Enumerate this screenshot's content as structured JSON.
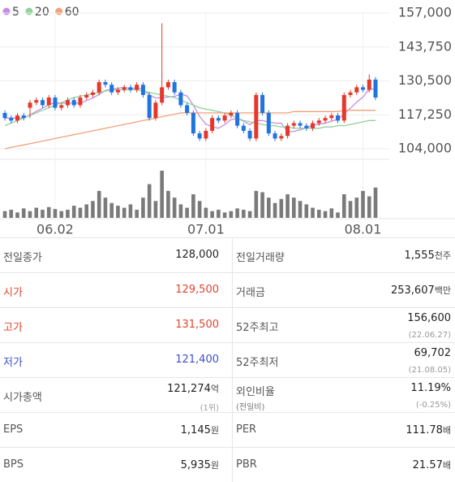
{
  "chart_data": {
    "type": "candlestick",
    "legend": [
      {
        "name": "5",
        "color": "#c78be6"
      },
      {
        "name": "20",
        "color": "#8fd39a"
      },
      {
        "name": "60",
        "color": "#f4a07a"
      }
    ],
    "up_color": "#e5382b",
    "down_color": "#1f74e0",
    "ylim": [
      104000,
      157000
    ],
    "yticks": [
      {
        "value": 157000,
        "label": "157,000"
      },
      {
        "value": 143750,
        "label": "143,750"
      },
      {
        "value": 130500,
        "label": "130,500"
      },
      {
        "value": 117250,
        "label": "117,250"
      },
      {
        "value": 104000,
        "label": "104,000"
      }
    ],
    "grid": true,
    "categories": [
      null,
      null,
      null,
      null,
      null,
      null,
      null,
      null,
      "06.02",
      null,
      null,
      null,
      null,
      null,
      null,
      null,
      null,
      null,
      null,
      null,
      null,
      null,
      null,
      null,
      null,
      null,
      null,
      null,
      null,
      null,
      null,
      null,
      "07.01",
      null,
      null,
      null,
      null,
      null,
      null,
      null,
      null,
      null,
      null,
      null,
      null,
      null,
      null,
      null,
      null,
      null,
      null,
      null,
      null,
      null,
      null,
      null,
      null,
      "08.01",
      null,
      null
    ],
    "open": [
      118000,
      116000,
      115000,
      117000,
      120000,
      122000,
      123000,
      121000,
      124000,
      120000,
      121000,
      123000,
      121000,
      124000,
      125000,
      126000,
      130000,
      129000,
      126000,
      127000,
      128000,
      127000,
      129000,
      125000,
      116000,
      122000,
      128000,
      130000,
      126000,
      121000,
      118000,
      110000,
      108000,
      111000,
      116000,
      115000,
      117000,
      118000,
      113000,
      111000,
      108000,
      125000,
      118000,
      110000,
      108000,
      109000,
      113000,
      114000,
      113000,
      112000,
      114000,
      115000,
      116000,
      117000,
      115000,
      125000,
      126000,
      128000,
      127000,
      131000
    ],
    "high": [
      119000,
      117000,
      118000,
      118000,
      123000,
      124000,
      124000,
      125000,
      125000,
      122000,
      124000,
      124000,
      125000,
      126000,
      127000,
      131000,
      131000,
      130000,
      128000,
      129000,
      129000,
      130000,
      130000,
      126000,
      123000,
      153000,
      131000,
      131000,
      127000,
      122000,
      119000,
      111000,
      112000,
      117000,
      117000,
      118000,
      119000,
      119000,
      114000,
      112000,
      126000,
      126000,
      119000,
      111000,
      110000,
      114000,
      115000,
      115000,
      114000,
      115000,
      116000,
      117000,
      118000,
      118000,
      126000,
      127000,
      129000,
      129000,
      133000,
      132000
    ],
    "low": [
      115000,
      114000,
      114000,
      115000,
      116000,
      121000,
      120000,
      120000,
      119000,
      119000,
      120000,
      120000,
      120000,
      123000,
      124000,
      125000,
      128000,
      125000,
      125000,
      126000,
      126000,
      126000,
      124000,
      115000,
      115000,
      121000,
      127000,
      125000,
      120000,
      117000,
      109000,
      107000,
      107000,
      110000,
      114000,
      114000,
      116000,
      112000,
      110000,
      107000,
      107000,
      117000,
      109000,
      107000,
      107000,
      108000,
      112000,
      112000,
      111000,
      111000,
      113000,
      114000,
      115000,
      114000,
      114000,
      124000,
      125000,
      126000,
      126000,
      123000
    ],
    "close": [
      116000,
      115000,
      117000,
      116000,
      122000,
      123000,
      121000,
      124000,
      120000,
      121000,
      123000,
      121000,
      124000,
      125000,
      126000,
      130000,
      129000,
      126000,
      127000,
      128000,
      127000,
      129000,
      125000,
      116000,
      122000,
      128000,
      130000,
      126000,
      121000,
      118000,
      110000,
      108000,
      111000,
      116000,
      115000,
      117000,
      118000,
      113000,
      111000,
      108000,
      125000,
      118000,
      110000,
      108000,
      109000,
      113000,
      114000,
      113000,
      112000,
      114000,
      115000,
      116000,
      117000,
      115000,
      125000,
      126000,
      128000,
      127000,
      131000,
      124000
    ],
    "volume": [
      10,
      12,
      8,
      14,
      10,
      15,
      12,
      16,
      13,
      10,
      12,
      18,
      15,
      20,
      25,
      40,
      30,
      22,
      18,
      15,
      20,
      12,
      30,
      50,
      25,
      70,
      40,
      30,
      20,
      15,
      35,
      25,
      15,
      10,
      12,
      8,
      10,
      14,
      12,
      10,
      40,
      38,
      30,
      22,
      28,
      35,
      30,
      25,
      20,
      15,
      12,
      10,
      14,
      8,
      35,
      25,
      30,
      40,
      32,
      45
    ],
    "volume_color": "#7a7a7a",
    "ma": [
      {
        "values": [
          116000,
          116000,
          116000,
          116000,
          117200,
          118600,
          119800,
          121200,
          122000,
          121800,
          121800,
          121800,
          121800,
          122800,
          123800,
          125200,
          126800,
          127200,
          127600,
          128000,
          127400,
          127800,
          127200,
          125000,
          123800,
          124000,
          124200,
          124400,
          125400,
          124600,
          121000,
          116600,
          113600,
          112600,
          112000,
          113400,
          115400,
          115800,
          114800,
          113400,
          115000,
          115000,
          114400,
          114000,
          114000,
          110600,
          110800,
          111400,
          112200,
          113200,
          113600,
          114000,
          114800,
          115400,
          117600,
          119800,
          122200,
          124200,
          127400,
          127200
        ]
      },
      {
        "values": [
          113000,
          114000,
          115000,
          116000,
          117000,
          118000,
          119000,
          120000,
          121000,
          122000,
          123000,
          124000,
          124500,
          125000,
          125500,
          126000,
          126500,
          127000,
          127000,
          127000,
          127000,
          127000,
          126500,
          126000,
          125500,
          125000,
          124500,
          124000,
          123000,
          122000,
          121000,
          120000,
          119500,
          119000,
          118500,
          118000,
          117000,
          116000,
          115000,
          114500,
          114000,
          113500,
          113000,
          113000,
          112500,
          112500,
          112000,
          112000,
          112000,
          112000,
          112000,
          112500,
          112500,
          113000,
          113000,
          113500,
          114000,
          114500,
          115000,
          115000
        ]
      },
      {
        "values": [
          104000,
          104500,
          105000,
          105500,
          106000,
          106500,
          107000,
          107500,
          108000,
          108500,
          109000,
          109500,
          110000,
          110500,
          111000,
          111500,
          112000,
          112500,
          113000,
          113500,
          114000,
          114500,
          115000,
          115500,
          116000,
          116500,
          117000,
          117500,
          118000,
          118000,
          118000,
          118000,
          118000,
          118000,
          118000,
          118000,
          118000,
          118000,
          118000,
          118000,
          118000,
          118000,
          118000,
          118000,
          118000,
          118000,
          118500,
          118500,
          118500,
          118500,
          118500,
          118500,
          118500,
          118500,
          119000,
          119000,
          119000,
          119000,
          119000,
          119000
        ]
      }
    ]
  },
  "table": {
    "rows": [
      [
        {
          "label": "전일종가",
          "value": "128,000"
        },
        {
          "label": "전일거래량",
          "value": "1,555",
          "unit": "천주"
        }
      ],
      [
        {
          "label": "시가",
          "value": "129,500",
          "color": "#e0452f"
        },
        {
          "label": "거래금",
          "value": "253,607",
          "unit": "백만"
        }
      ],
      [
        {
          "label": "고가",
          "value": "131,500",
          "color": "#e0452f"
        },
        {
          "label": "52주최고",
          "value": "156,600",
          "sub": "(22.06.27)"
        }
      ],
      [
        {
          "label": "저가",
          "value": "121,400",
          "color": "#3d4fc8"
        },
        {
          "label": "52주최저",
          "value": "69,702",
          "sub": "(21.08.05)"
        }
      ],
      [
        {
          "label": "시가총액",
          "value": "121,274",
          "unit": "억",
          "sub": "(1위)"
        },
        {
          "label": "외인비율",
          "label_sub": "(전일비)",
          "value": "11.19%",
          "sub": "(-0.25%)"
        }
      ],
      [
        {
          "label": "EPS",
          "value": "1,145",
          "unit": "원"
        },
        {
          "label": "PER",
          "value": "111.78",
          "unit": "배"
        }
      ],
      [
        {
          "label": "BPS",
          "value": "5,935",
          "unit": "원"
        },
        {
          "label": "PBR",
          "value": "21.57",
          "unit": "배"
        }
      ]
    ]
  }
}
